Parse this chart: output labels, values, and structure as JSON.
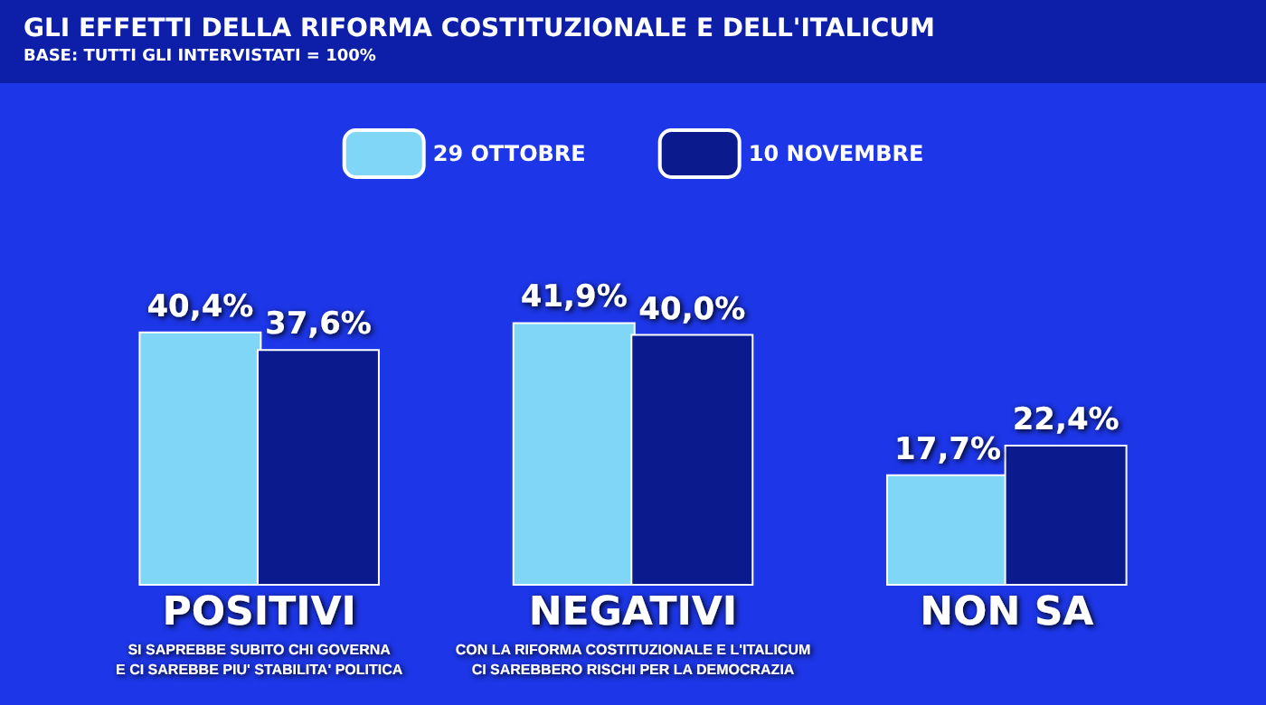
{
  "chart_data": {
    "type": "bar",
    "title": "GLI EFFETTI DELLA RIFORMA COSTITUZIONALE E DELL'ITALICUM",
    "subtitle": "BASE: TUTTI GLI INTERVISTATI = 100%",
    "categories": [
      "POSITIVI\nSI SAPREBBE SUBITO CHI GOVERNA\nE CI SAREBBE PIU' STABILITA' POLITICA",
      "NEGATIVI\nCON LA RIFORMA COSTITUZIONALE E L'ITALICUM\nCI SAREBBERO RISCHI PER LA DEMOCRAZIA",
      "NON SA"
    ],
    "series": [
      {
        "name": "29 OTTOBRE",
        "color": "#7fd6f7",
        "values": [
          40.4,
          41.9,
          17.7
        ],
        "value_labels": [
          "40,4%",
          "41,9%",
          "17,7%"
        ]
      },
      {
        "name": "10 NOVEMBRE",
        "color": "#0b1a8c",
        "values": [
          37.6,
          40.0,
          22.4
        ],
        "value_labels": [
          "37,6%",
          "40,0%",
          "22,4%"
        ]
      }
    ],
    "legend": "top"
  }
}
